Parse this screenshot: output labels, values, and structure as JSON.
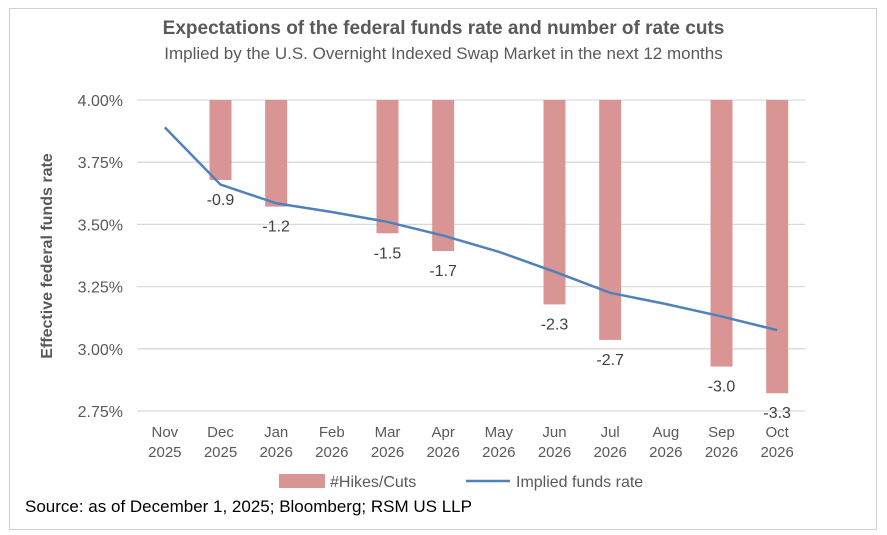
{
  "chart_data": {
    "type": "bar+line",
    "title": "Expectations of the federal funds rate and number of rate cuts",
    "subtitle": "Implied by the U.S. Overnight Indexed Swap Market in the next 12 months",
    "ylabel": "Effective federal funds rate",
    "ylim": [
      2.75,
      4.0
    ],
    "yticks": [
      "4.00%",
      "3.75%",
      "3.50%",
      "3.25%",
      "3.00%",
      "2.75%"
    ],
    "ytick_values": [
      4.0,
      3.75,
      3.5,
      3.25,
      3.0,
      2.75
    ],
    "grid": true,
    "legend_position": "bottom",
    "categories": [
      [
        "Nov",
        "2025"
      ],
      [
        "Dec",
        "2025"
      ],
      [
        "Jan",
        "2026"
      ],
      [
        "Feb",
        "2026"
      ],
      [
        "Mar",
        "2026"
      ],
      [
        "Apr",
        "2026"
      ],
      [
        "May",
        "2026"
      ],
      [
        "Jun",
        "2026"
      ],
      [
        "Jul",
        "2026"
      ],
      [
        "Aug",
        "2026"
      ],
      [
        "Sep",
        "2026"
      ],
      [
        "Oct",
        "2026"
      ]
    ],
    "series": [
      {
        "name": "#Hikes/Cuts",
        "type": "bar",
        "axis": "secondary",
        "color": "#d99594",
        "values": [
          null,
          -0.9,
          -1.2,
          null,
          -1.5,
          -1.7,
          null,
          -2.3,
          -2.7,
          null,
          -3.0,
          -3.3
        ],
        "labels": [
          null,
          "-0.9",
          "-1.2",
          null,
          "-1.5",
          "-1.7",
          null,
          "-2.3",
          "-2.7",
          null,
          "-3.0",
          "-3.3"
        ]
      },
      {
        "name": "Implied funds rate",
        "type": "line",
        "color": "#4f81bd",
        "values": [
          3.89,
          3.66,
          3.585,
          3.55,
          3.51,
          3.455,
          3.39,
          3.31,
          3.225,
          3.18,
          3.13,
          3.075
        ]
      }
    ],
    "secondary_ylim": [
      -3.5,
      0
    ]
  },
  "source": "Source: as of December 1, 2025; Bloomberg; RSM US LLP"
}
